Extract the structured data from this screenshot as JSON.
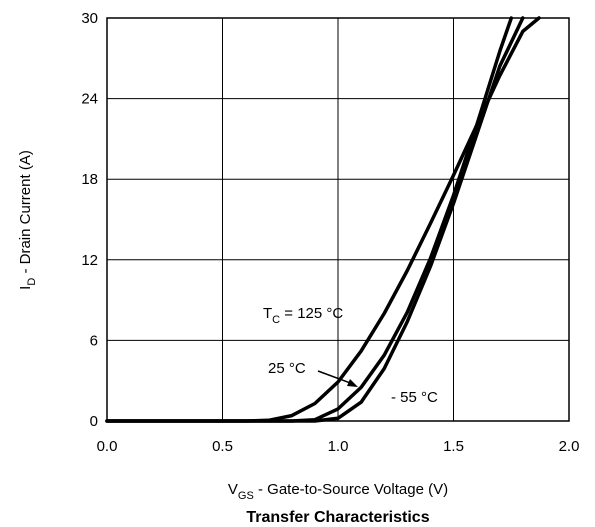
{
  "chart_data": {
    "type": "line",
    "title": "Transfer Characteristics",
    "xlabel": {
      "main": "V",
      "sub": "GS",
      "rest": " - Gate-to-Source Voltage (V)"
    },
    "ylabel": {
      "main": "I",
      "sub": "D",
      "rest": " - Drain Current (A)"
    },
    "xlim": [
      0,
      2.0
    ],
    "ylim": [
      0,
      30
    ],
    "xticks": [
      0,
      0.5,
      1.0,
      1.5,
      2.0
    ],
    "xtick_labels": [
      "0.0",
      "0.5",
      "1.0",
      "1.5",
      "2.0"
    ],
    "yticks": [
      0,
      6,
      12,
      18,
      24,
      30
    ],
    "ytick_labels": [
      "0",
      "6",
      "12",
      "18",
      "24",
      "30"
    ],
    "grid": true,
    "series": [
      {
        "name": "T_C = 125 °C",
        "x": [
          0,
          0.6,
          0.7,
          0.8,
          0.9,
          1.0,
          1.1,
          1.2,
          1.3,
          1.4,
          1.5,
          1.6,
          1.7,
          1.8,
          1.87
        ],
        "y": [
          0,
          0,
          0.05,
          0.4,
          1.3,
          2.9,
          5.2,
          8.0,
          11.2,
          14.7,
          18.3,
          22.0,
          25.7,
          29.0,
          30
        ]
      },
      {
        "name": "25 °C",
        "x": [
          0,
          0.8,
          0.9,
          1.0,
          1.1,
          1.2,
          1.3,
          1.4,
          1.5,
          1.6,
          1.7,
          1.75
        ],
        "y": [
          0,
          0,
          0.1,
          0.9,
          2.5,
          4.9,
          8.1,
          12.1,
          16.8,
          22.0,
          27.5,
          30
        ]
      },
      {
        "name": "- 55 °C",
        "x": [
          0,
          0.9,
          1.0,
          1.1,
          1.2,
          1.3,
          1.4,
          1.5,
          1.6,
          1.7,
          1.8
        ],
        "y": [
          0,
          0,
          0.2,
          1.4,
          3.9,
          7.4,
          11.5,
          16.2,
          21.3,
          26.4,
          30
        ]
      }
    ],
    "annotations": [
      {
        "main": "T",
        "sub": "C",
        "rest": " = 125 °C"
      },
      {
        "main": "",
        "sub": "",
        "rest": "25 °C"
      },
      {
        "main": "",
        "sub": "",
        "rest": "- 55 °C"
      }
    ]
  }
}
